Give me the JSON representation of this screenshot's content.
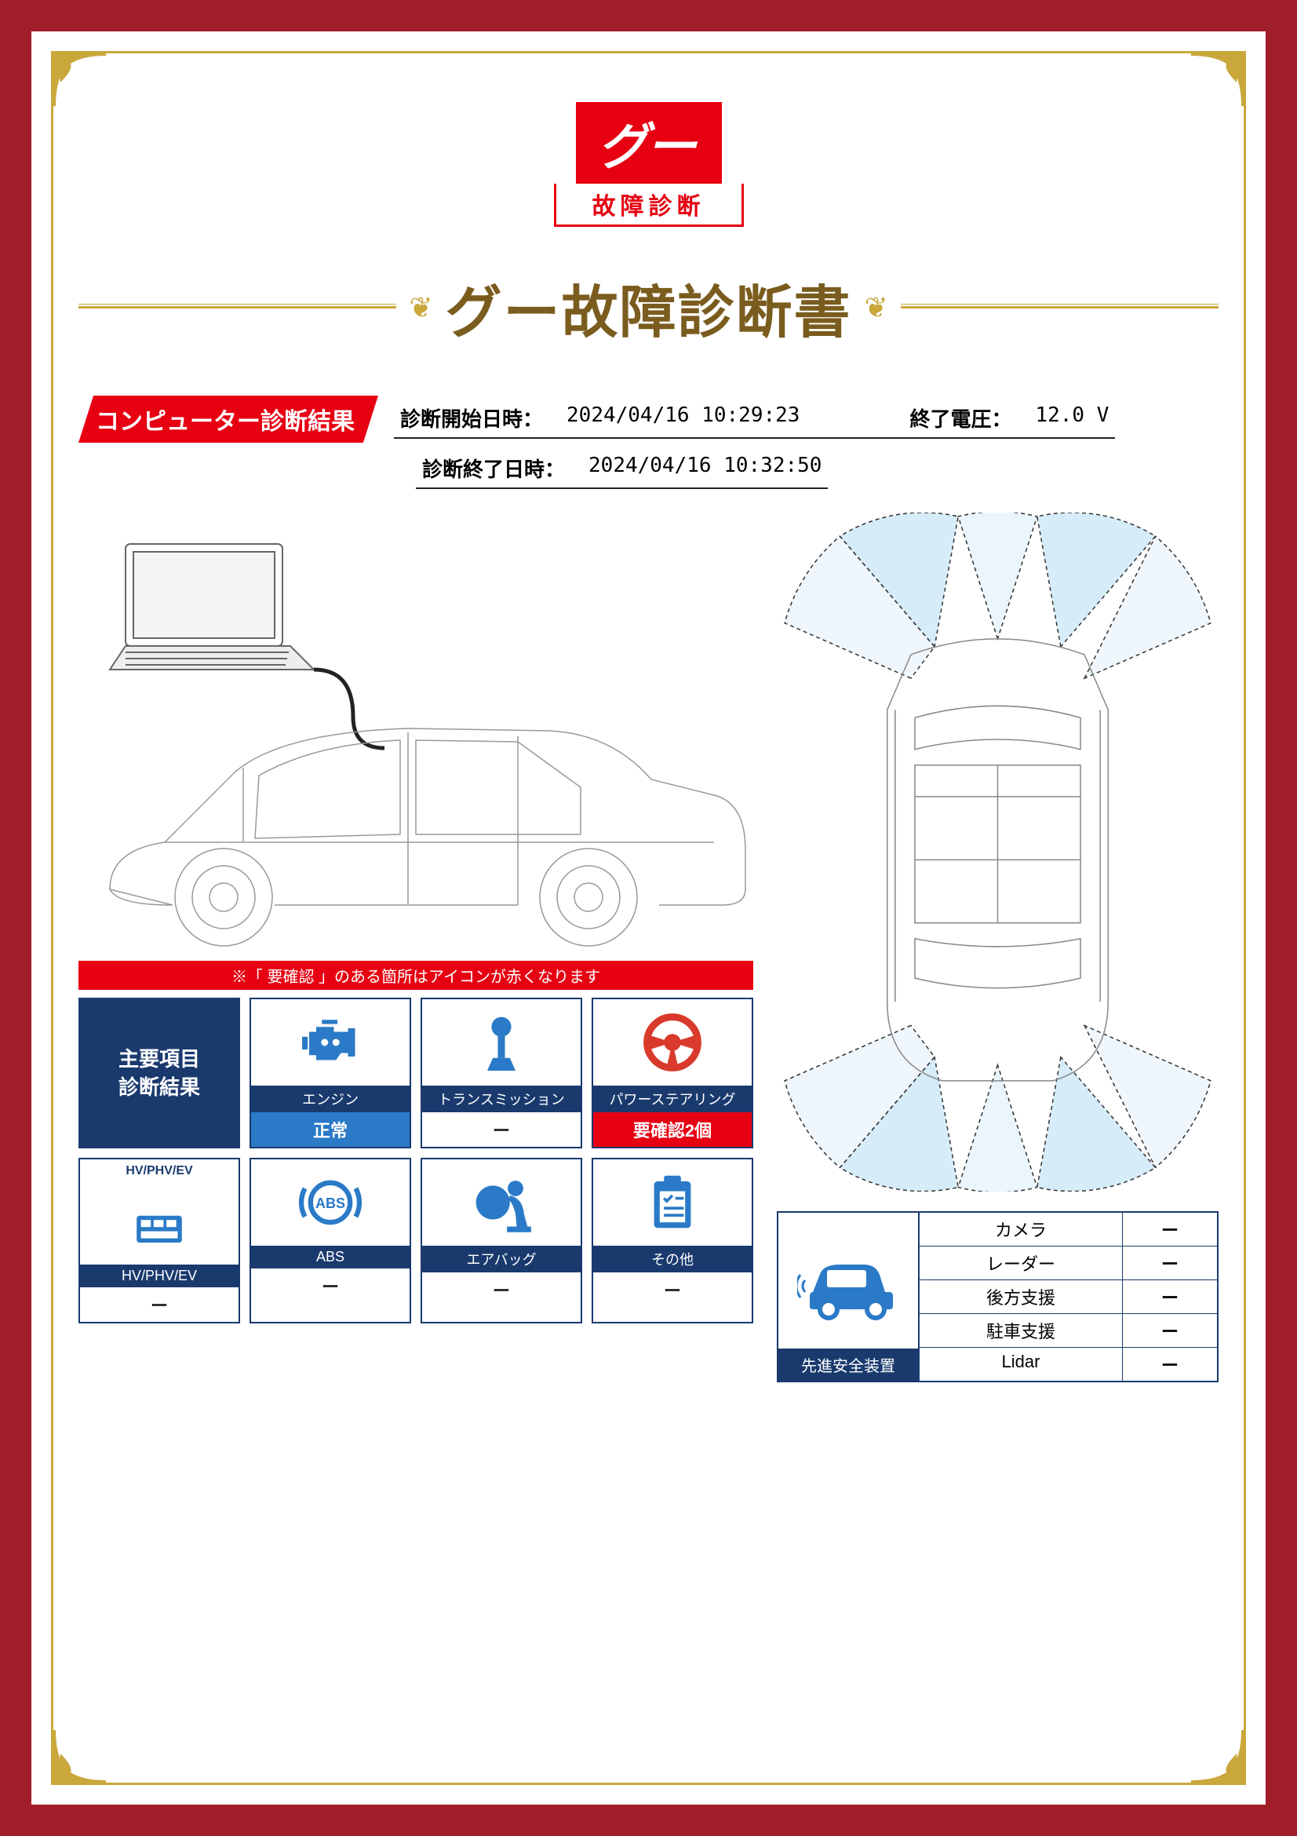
{
  "colors": {
    "page_bg": "#a01e2a",
    "gold": "#c9a73b",
    "title_brown": "#7a5c1e",
    "brand_red": "#e60012",
    "navy": "#1a3a6e",
    "blue_status": "#2a7ac7",
    "icon_blue": "#2a7ac7",
    "icon_red": "#d93a2b"
  },
  "logo": {
    "brand": "グー",
    "subtitle": "故障診断"
  },
  "title": "グー故障診断書",
  "section_header": "コンピューター診断結果",
  "meta": {
    "start_label": "診断開始日時：",
    "start_value": "2024/04/16 10:29:23",
    "voltage_label": "終了電圧：",
    "voltage_value": "12.0 V",
    "end_label": "診断終了日時：",
    "end_value": "2024/04/16 10:32:50"
  },
  "diagram": {
    "side_stroke": "#999999",
    "top_stroke": "#888888",
    "sensor_fill": "#d6ecf9",
    "sensor_stroke": "#333333"
  },
  "notice": "※「 要確認 」のある箇所はアイコンが赤くなります",
  "grid": {
    "header": "主要項目\n診断結果",
    "cells": [
      {
        "label": "エンジン",
        "status": "正常",
        "status_class": "status-normal",
        "icon": "engine",
        "icon_color": "#2a7ac7"
      },
      {
        "label": "トランスミッション",
        "status": "ー",
        "status_class": "status-dash",
        "icon": "transmission",
        "icon_color": "#2a7ac7"
      },
      {
        "label": "パワーステアリング",
        "status": "要確認2個",
        "status_class": "status-warn",
        "icon": "steering",
        "icon_color": "#d93a2b"
      },
      {
        "label": "HV/PHV/EV",
        "status": "ー",
        "status_class": "status-dash",
        "icon": "hvev",
        "icon_color": "#2a7ac7",
        "top_text": "HV/PHV/EV"
      },
      {
        "label": "ABS",
        "status": "ー",
        "status_class": "status-dash",
        "icon": "abs",
        "icon_color": "#2a7ac7"
      },
      {
        "label": "エアバッグ",
        "status": "ー",
        "status_class": "status-dash",
        "icon": "airbag",
        "icon_color": "#2a7ac7"
      },
      {
        "label": "その他",
        "status": "ー",
        "status_class": "status-dash",
        "icon": "clipboard",
        "icon_color": "#2a7ac7"
      }
    ]
  },
  "safety": {
    "header": "先進安全装置",
    "rows": [
      {
        "k": "カメラ",
        "v": "ー"
      },
      {
        "k": "レーダー",
        "v": "ー"
      },
      {
        "k": "後方支援",
        "v": "ー"
      },
      {
        "k": "駐車支援",
        "v": "ー"
      },
      {
        "k": "Lidar",
        "v": "ー"
      }
    ]
  }
}
